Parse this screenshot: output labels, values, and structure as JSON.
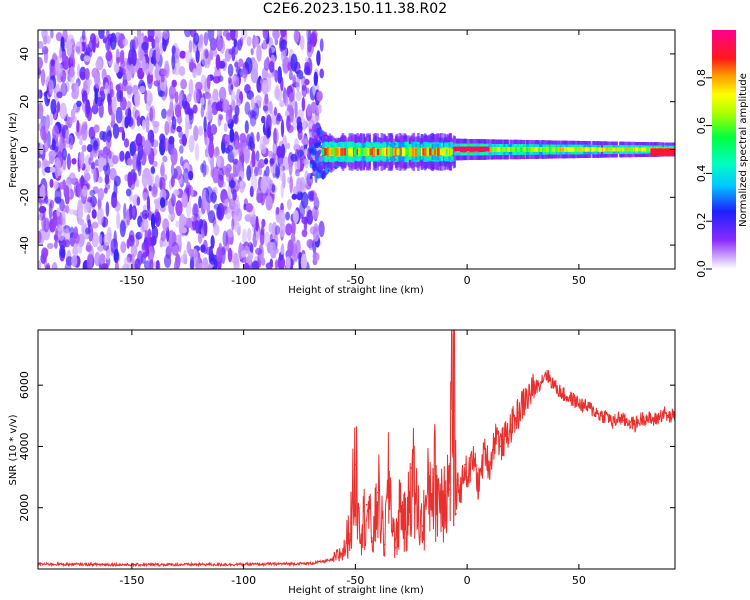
{
  "figure_title": "C2E6.2023.150.11.38.R02",
  "chart_data": [
    {
      "type": "heatmap",
      "title": "",
      "xlabel": "Height of straight line (km)",
      "ylabel": "Frequency (Hz)",
      "xlim": [
        -192,
        93
      ],
      "ylim": [
        -50,
        50
      ],
      "xticks": [
        -150,
        -100,
        -50,
        0,
        50
      ],
      "yticks": [
        -40,
        -20,
        0,
        20,
        40
      ],
      "grid": false,
      "colorscale": "rainbow (white-violet-blue-cyan-green-yellow-red-magenta)",
      "colorbar": {
        "label": "Normalized spectral amplitude",
        "range": [
          0,
          1
        ],
        "ticks": [
          0.0,
          0.2,
          0.4,
          0.6,
          0.8
        ]
      },
      "features": {
        "noise_region": {
          "x": [
            -192,
            -65
          ],
          "frequency_range": [
            -50,
            50
          ],
          "amplitude_range": [
            0.0,
            0.2
          ]
        },
        "transition": {
          "x": [
            -70,
            -60
          ],
          "frequency_range": [
            -15,
            10
          ]
        },
        "signal_band_1": {
          "x": [
            -65,
            -6
          ],
          "frequency_center": -1,
          "peak_amplitude": 0.9
        },
        "signal_band_2": {
          "x": [
            -6,
            93
          ],
          "frequency_center": 0,
          "peak_amplitude": 0.95
        }
      }
    },
    {
      "type": "line",
      "title": "",
      "xlabel": "Height of straight line (km)",
      "ylabel": "SNR (10 * v/v)",
      "xlim": [
        -192,
        93
      ],
      "ylim": [
        0,
        7800
      ],
      "xticks": [
        -150,
        -100,
        -50,
        0,
        50
      ],
      "yticks": [
        2000,
        4000,
        6000
      ],
      "grid": false,
      "color": "#e8312f",
      "series": [
        {
          "x": [
            -192,
            -150,
            -100,
            -70,
            -60,
            -55,
            -52,
            -50,
            -47,
            -45,
            -42,
            -40,
            -37,
            -35,
            -32,
            -30,
            -27,
            -25,
            -22,
            -20,
            -17,
            -15,
            -12,
            -10,
            -8,
            -6,
            -5,
            -4,
            -3,
            -1,
            0,
            3,
            5,
            8,
            10,
            13,
            15,
            18,
            20,
            23,
            25,
            28,
            30,
            33,
            35,
            37,
            40,
            43,
            45,
            48,
            50,
            53,
            55,
            58,
            60,
            63,
            65,
            68,
            70,
            73,
            75,
            78,
            80,
            83,
            85,
            88,
            90,
            93
          ],
          "values": [
            160,
            140,
            150,
            180,
            300,
            600,
            1500,
            3400,
            1300,
            2100,
            900,
            2500,
            800,
            2900,
            700,
            2200,
            1200,
            3300,
            1800,
            1400,
            2600,
            3000,
            2300,
            2800,
            2600,
            7600,
            1800,
            2900,
            2500,
            3400,
            3000,
            3600,
            2700,
            3900,
            3300,
            4500,
            4000,
            4400,
            4700,
            5100,
            5400,
            5700,
            5900,
            6100,
            6400,
            6200,
            5900,
            5700,
            5600,
            5500,
            5400,
            5300,
            5250,
            5100,
            5000,
            5000,
            4750,
            4950,
            4850,
            4800,
            4700,
            4900,
            4950,
            4850,
            4900,
            5100,
            4950,
            5000
          ]
        }
      ]
    }
  ]
}
